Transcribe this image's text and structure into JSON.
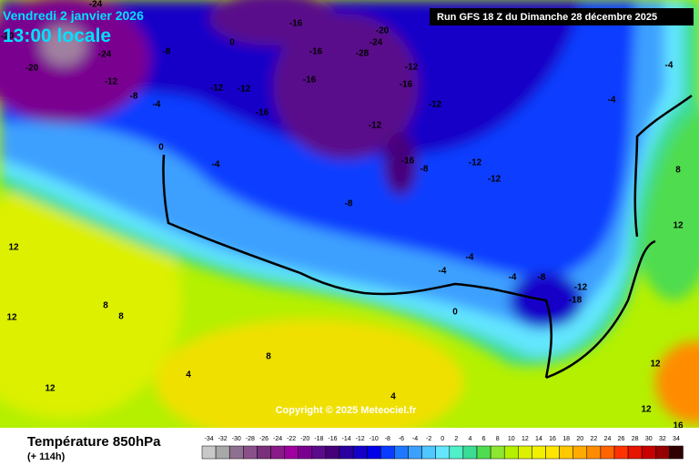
{
  "header": {
    "date": "Vendredi 2 janvier 2026",
    "time": "13:00 locale",
    "run": "Run GFS 18 Z du Dimanche 28 décembre 2025"
  },
  "copyright": "Copyright © 2025 Meteociel.fr",
  "legend": {
    "title": "Température 850hPa",
    "lead": "(+ 114h)"
  },
  "colorbar": {
    "levels": [
      -34,
      -32,
      -30,
      -28,
      -26,
      -24,
      -22,
      -20,
      -18,
      -16,
      -14,
      -12,
      -10,
      -8,
      -6,
      -4,
      -2,
      0,
      2,
      4,
      6,
      8,
      10,
      12,
      14,
      16,
      18,
      20,
      22,
      24,
      26,
      28,
      30,
      32,
      34
    ],
    "colors": [
      "#c8c8c8",
      "#a8a8a8",
      "#907090",
      "#8a508a",
      "#7a307a",
      "#8a1a8a",
      "#a000a0",
      "#7a0090",
      "#5a0a8a",
      "#46007a",
      "#2a00a0",
      "#1400c8",
      "#0000e6",
      "#0a3cff",
      "#1e78ff",
      "#3ca0ff",
      "#50c8ff",
      "#64e6ff",
      "#50f0c8",
      "#3cdc96",
      "#50dc50",
      "#8ce632",
      "#b4f000",
      "#dcf000",
      "#f0f000",
      "#ffe600",
      "#ffc800",
      "#ffaa00",
      "#ff8c00",
      "#ff6400",
      "#ff3200",
      "#e61400",
      "#c80000",
      "#960000",
      "#300000"
    ]
  },
  "map_labels": [
    -24,
    -20,
    -20,
    -24,
    -12,
    -8,
    -8,
    -4,
    0,
    -12,
    -12,
    -16,
    -16,
    -16,
    -16,
    -28,
    -24,
    -20,
    -12,
    -16,
    -12,
    -12,
    -16,
    -8,
    -12,
    -12,
    -8,
    0,
    -4,
    12,
    12,
    8,
    8,
    0,
    -8,
    -12,
    -18,
    -4,
    -4,
    -4,
    -4,
    -4,
    8,
    12,
    12,
    16,
    12,
    12,
    4,
    8,
    4
  ]
}
